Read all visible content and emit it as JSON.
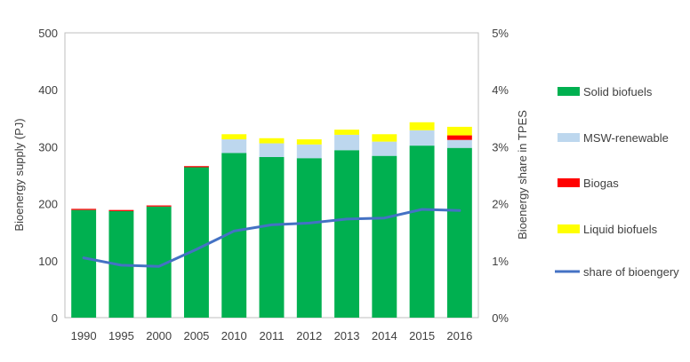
{
  "chart_data": {
    "type": "bar",
    "stacked": true,
    "categories": [
      "1990",
      "1995",
      "2000",
      "2005",
      "2010",
      "2011",
      "2012",
      "2013",
      "2014",
      "2015",
      "2016"
    ],
    "series": [
      {
        "name": "Solid biofuels",
        "color": "#00B050",
        "values": [
          189,
          187,
          195,
          264,
          289,
          282,
          280,
          294,
          284,
          302,
          298
        ]
      },
      {
        "name": "MSW-renewable",
        "color": "#BDD7EE",
        "values": [
          0,
          0,
          0,
          0,
          24,
          24,
          24,
          27,
          25,
          27,
          14
        ]
      },
      {
        "name": "Biogas",
        "color": "#FF0000",
        "values": [
          2,
          2,
          2,
          2,
          0,
          0,
          0,
          0,
          0,
          0,
          8
        ]
      },
      {
        "name": "Liquid biofuels",
        "color": "#FFFF00",
        "values": [
          0,
          0,
          0,
          0,
          9,
          9,
          9,
          9,
          13,
          14,
          15
        ]
      }
    ],
    "line_series": {
      "name": "share of bioengery",
      "color": "#4472C4",
      "axis": "right",
      "values": [
        1.05,
        0.92,
        0.9,
        1.2,
        1.52,
        1.63,
        1.66,
        1.73,
        1.75,
        1.9,
        1.88
      ]
    },
    "ylabel": "Bioenergy supply (PJ)",
    "ylim": [
      0,
      500
    ],
    "yticks": [
      "0",
      "100",
      "200",
      "300",
      "400",
      "500"
    ],
    "y2label": "Bioenergy share in TPES",
    "y2lim": [
      0,
      5
    ],
    "y2ticks": [
      "0%",
      "1%",
      "2%",
      "3%",
      "4%",
      "5%"
    ],
    "legend_position": "right"
  }
}
